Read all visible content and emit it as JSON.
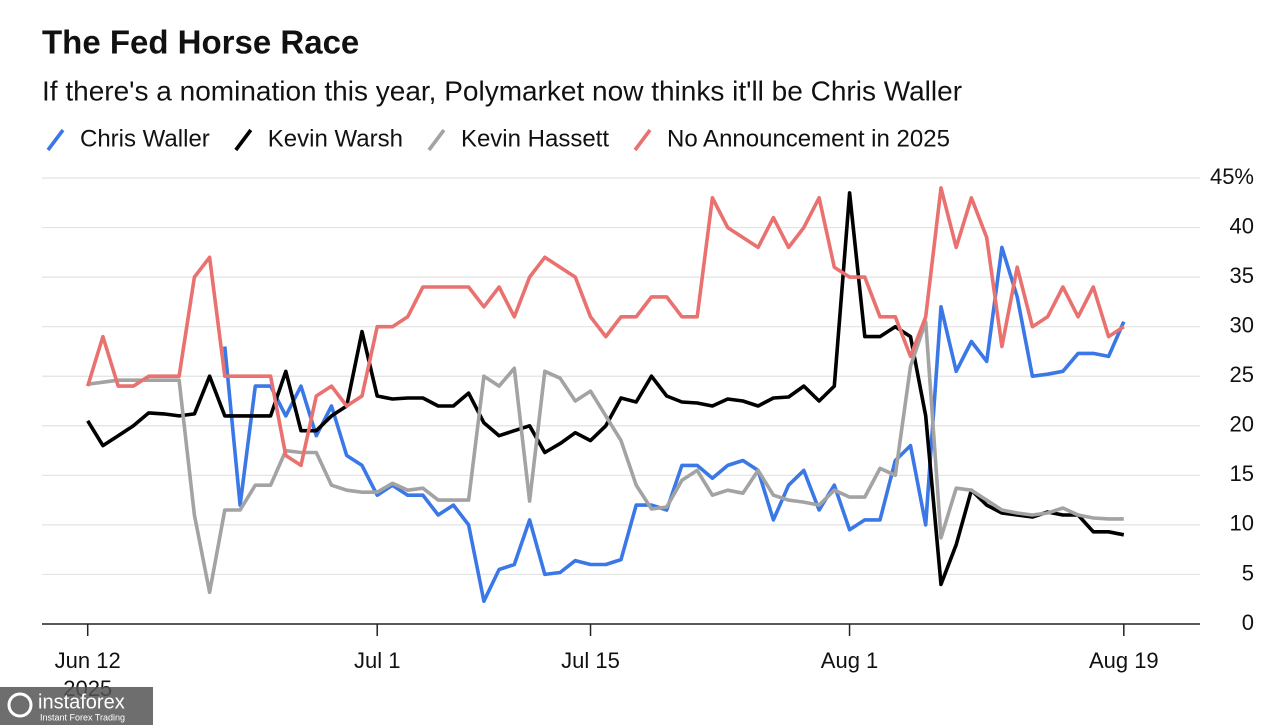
{
  "chart_data": {
    "type": "line",
    "title": "The Fed Horse Race",
    "subtitle": "If there's a nomination this year, Polymarket now thinks it'll be Chris Waller",
    "x": [
      "2025-06-12",
      "2025-06-13",
      "2025-06-14",
      "2025-06-15",
      "2025-06-16",
      "2025-06-17",
      "2025-06-18",
      "2025-06-19",
      "2025-06-20",
      "2025-06-21",
      "2025-06-22",
      "2025-06-23",
      "2025-06-24",
      "2025-06-25",
      "2025-06-26",
      "2025-06-27",
      "2025-06-28",
      "2025-06-29",
      "2025-06-30",
      "2025-07-01",
      "2025-07-02",
      "2025-07-03",
      "2025-07-04",
      "2025-07-05",
      "2025-07-06",
      "2025-07-07",
      "2025-07-08",
      "2025-07-09",
      "2025-07-10",
      "2025-07-11",
      "2025-07-12",
      "2025-07-13",
      "2025-07-14",
      "2025-07-15",
      "2025-07-16",
      "2025-07-17",
      "2025-07-18",
      "2025-07-19",
      "2025-07-20",
      "2025-07-21",
      "2025-07-22",
      "2025-07-23",
      "2025-07-24",
      "2025-07-25",
      "2025-07-26",
      "2025-07-27",
      "2025-07-28",
      "2025-07-29",
      "2025-07-30",
      "2025-07-31",
      "2025-08-01",
      "2025-08-02",
      "2025-08-03",
      "2025-08-04",
      "2025-08-05",
      "2025-08-06",
      "2025-08-07",
      "2025-08-08",
      "2025-08-09",
      "2025-08-10",
      "2025-08-11",
      "2025-08-12",
      "2025-08-13",
      "2025-08-14",
      "2025-08-15",
      "2025-08-16",
      "2025-08-17",
      "2025-08-18",
      "2025-08-19"
    ],
    "series": [
      {
        "name": "Chris Waller",
        "color": "#3b78e7",
        "values": [
          null,
          null,
          null,
          null,
          null,
          null,
          null,
          null,
          null,
          28,
          12,
          24,
          24,
          21,
          24,
          19,
          22,
          17,
          16,
          13,
          14,
          13,
          13,
          11,
          12,
          10,
          2.3,
          5.5,
          6,
          10.5,
          5,
          5.2,
          6.4,
          6,
          6,
          6.5,
          12,
          12,
          11.5,
          16,
          16,
          14.7,
          16,
          16.5,
          15.5,
          10.5,
          14,
          15.5,
          11.5,
          14,
          9.5,
          10.5,
          10.5,
          16.5,
          18,
          10,
          32,
          25.5,
          28.5,
          26.5,
          38,
          33,
          25,
          25.2,
          25.5,
          27.3,
          27.3,
          27,
          30.5
        ]
      },
      {
        "name": "Kevin Warsh",
        "color": "#000000",
        "values": [
          20.5,
          18,
          19,
          20,
          21.3,
          21.2,
          21,
          21.2,
          25,
          21,
          21,
          21,
          21,
          25.5,
          19.5,
          19.5,
          21,
          22,
          29.5,
          23,
          22.7,
          22.8,
          22.8,
          22,
          22,
          23.3,
          20.3,
          19,
          19.5,
          20,
          17.3,
          18.2,
          19.3,
          18.5,
          20,
          22.8,
          22.4,
          25,
          23,
          22.4,
          22.3,
          22,
          22.7,
          22.5,
          22,
          22.8,
          22.9,
          24,
          22.5,
          24,
          43.5,
          29,
          29,
          30,
          29,
          21,
          4,
          8,
          13.5,
          12,
          11.2,
          11,
          10.8,
          11.3,
          11,
          11,
          9.3,
          9.3,
          9
        ]
      },
      {
        "name": "Kevin Hassett",
        "color": "#a3a3a3",
        "values": [
          24.2,
          24.4,
          24.6,
          24.6,
          24.6,
          24.6,
          24.6,
          11,
          3.2,
          11.5,
          11.5,
          14,
          14,
          17.5,
          17.3,
          17.3,
          14,
          13.5,
          13.3,
          13.3,
          14.2,
          13.5,
          13.7,
          12.5,
          12.5,
          12.5,
          25,
          24,
          25.8,
          12.4,
          25.5,
          24.8,
          22.5,
          23.5,
          21,
          18.5,
          14,
          11.6,
          11.8,
          14.5,
          15.5,
          13,
          13.5,
          13.2,
          15.5,
          13,
          12.5,
          12.3,
          12,
          13.5,
          12.8,
          12.8,
          15.7,
          15,
          26,
          30.5,
          8.7,
          13.7,
          13.5,
          12.5,
          11.5,
          11.2,
          11,
          11.2,
          11.7,
          11,
          10.7,
          10.6,
          10.6
        ]
      },
      {
        "name": "No Announcement in 2025",
        "color": "#e9716f",
        "values": [
          24,
          29,
          24,
          24,
          25,
          25,
          25,
          35,
          37,
          25,
          25,
          25,
          25,
          17,
          16,
          23,
          24,
          22,
          23,
          30,
          30,
          31,
          34,
          34,
          34,
          34,
          32,
          34,
          31,
          35,
          37,
          36,
          35,
          31,
          29,
          31,
          31,
          33,
          33,
          31,
          31,
          43,
          40,
          39,
          38,
          41,
          38,
          40,
          43,
          36,
          35,
          35,
          31,
          31,
          27,
          31,
          44,
          38,
          43,
          39,
          28,
          36,
          30,
          31,
          34,
          31,
          34,
          29,
          30
        ]
      }
    ],
    "xlim": [
      "2025-06-09",
      "2025-08-24"
    ],
    "xticks": [
      {
        "value": "2025-06-12",
        "label": "Jun 12"
      },
      {
        "value": "2025-07-01",
        "label": "Jul 1"
      },
      {
        "value": "2025-07-15",
        "label": "Jul 15"
      },
      {
        "value": "2025-08-01",
        "label": "Aug 1"
      },
      {
        "value": "2025-08-19",
        "label": "Aug 19"
      }
    ],
    "x_year_label": "2025",
    "ylim": [
      0,
      45
    ],
    "yticks": [
      0,
      5,
      10,
      15,
      20,
      25,
      30,
      35,
      40,
      {
        "value": 45,
        "label": "45%"
      }
    ],
    "grid": true,
    "legend": "top"
  },
  "watermark": {
    "brand": "instaforex",
    "tagline": "Instant Forex Trading"
  }
}
